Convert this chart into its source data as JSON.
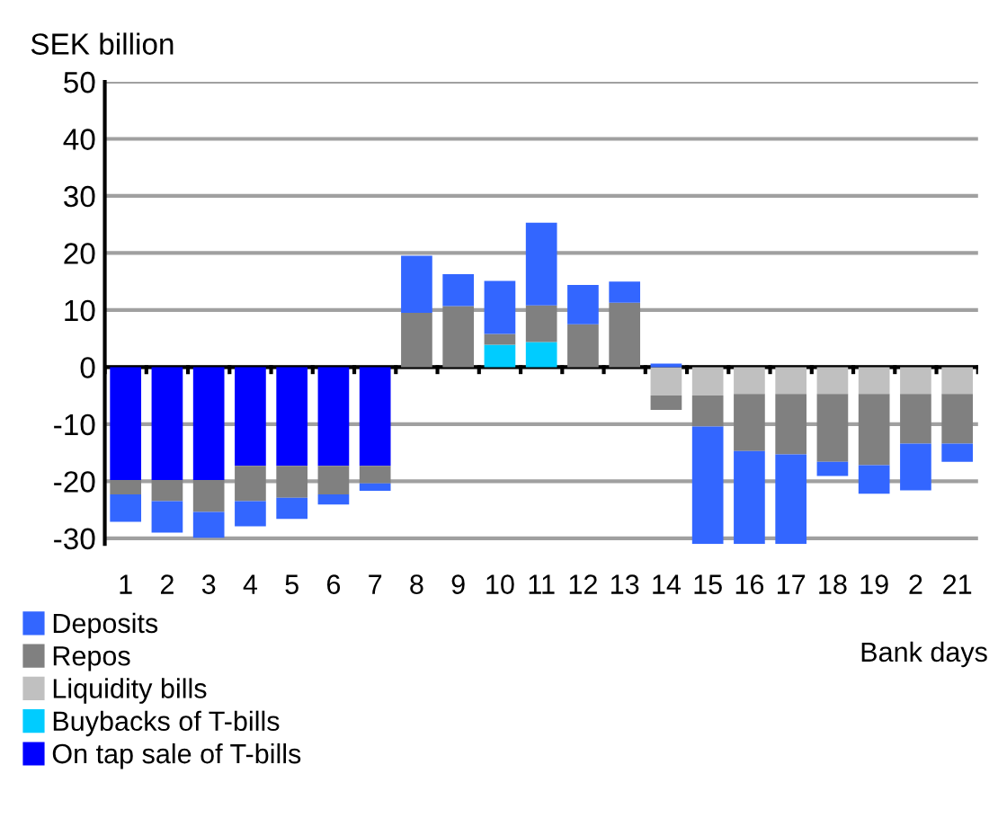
{
  "chart_data": {
    "type": "bar",
    "stacked": true,
    "ylabel": "SEK billion",
    "xlabel": "Bank days",
    "categories": [
      "1",
      "2",
      "3",
      "4",
      "5",
      "6",
      "7",
      "8",
      "9",
      "10",
      "11",
      "12",
      "13",
      "14",
      "15",
      "16",
      "17",
      "18",
      "19",
      "2",
      "21"
    ],
    "series": [
      {
        "name": "On tap sale of T-bills",
        "color": "#0000ff",
        "values": [
          -19.8,
          -19.8,
          -19.8,
          -17.3,
          -17.3,
          -17.3,
          -17.3,
          null,
          null,
          null,
          null,
          null,
          null,
          null,
          null,
          null,
          null,
          null,
          null,
          null,
          null
        ]
      },
      {
        "name": "Buybacks of T-bills",
        "color": "#00ccff",
        "values": [
          null,
          null,
          null,
          null,
          null,
          null,
          null,
          null,
          null,
          3.9,
          4.4,
          null,
          null,
          null,
          null,
          null,
          null,
          null,
          null,
          null,
          null
        ]
      },
      {
        "name": "Liquidity bills",
        "color": "#c0c0c0",
        "values": [
          null,
          null,
          null,
          null,
          null,
          null,
          null,
          null,
          null,
          null,
          null,
          null,
          null,
          -5.0,
          -5.0,
          -4.7,
          -4.7,
          -4.7,
          -4.7,
          -4.7,
          -4.7
        ]
      },
      {
        "name": "Repos",
        "color": "#808080",
        "values": [
          -2.5,
          -3.7,
          -5.6,
          -6.2,
          -5.6,
          -5.0,
          -3.1,
          9.5,
          10.7,
          1.9,
          6.4,
          7.5,
          11.3,
          -2.5,
          -5.4,
          -10.0,
          -10.6,
          -11.9,
          -12.5,
          -8.7,
          -8.7
        ]
      },
      {
        "name": "Deposits",
        "color": "#3366ff",
        "values": [
          -4.8,
          -5.5,
          -4.5,
          -4.4,
          -3.7,
          -1.8,
          -1.3,
          10.0,
          5.6,
          9.3,
          14.5,
          6.9,
          3.7,
          0.6,
          -20.6,
          -16.3,
          -15.7,
          -2.5,
          -5.0,
          -8.2,
          -3.2
        ]
      }
    ],
    "ylim": [
      -31,
      50
    ],
    "yticks": [
      -30,
      -20,
      -10,
      0,
      10,
      20,
      30,
      40,
      50
    ],
    "grid": "y",
    "legend": "bottom left",
    "ref_lines": [
      {
        "axis": "y",
        "value": 0,
        "color": "#000000"
      }
    ]
  }
}
